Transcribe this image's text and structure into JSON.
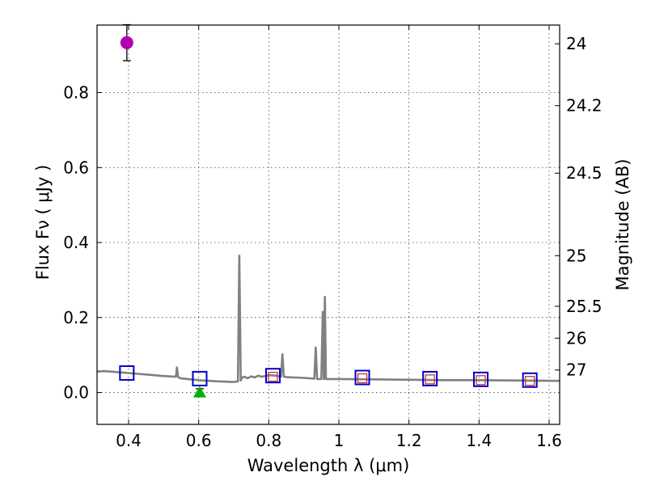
{
  "chart_data": {
    "type": "scatter",
    "title": "",
    "xlabel": "Wavelength  λ (μm)",
    "ylabel": "Flux  Fν  ( μJy )",
    "ylabel_right": "Magnitude (AB)",
    "xlim": [
      0.31,
      1.63
    ],
    "ylim": [
      -0.085,
      0.98
    ],
    "grid": true,
    "x_ticks": [
      0.4,
      0.6,
      0.8,
      1.0,
      1.2,
      1.4,
      1.6
    ],
    "x_tick_labels": [
      "0.4",
      "0.6",
      "0.8",
      "1",
      "1.2",
      "1.4",
      "1.6"
    ],
    "y_ticks": [
      0.0,
      0.2,
      0.4,
      0.6,
      0.8
    ],
    "y_tick_labels": [
      "0.0",
      "0.2",
      "0.4",
      "0.6",
      "0.8"
    ],
    "right_ticks": [
      {
        "flux": 0.93,
        "label": "24"
      },
      {
        "flux": 0.765,
        "label": "24.2"
      },
      {
        "flux": 0.585,
        "label": "24.5"
      },
      {
        "flux": 0.365,
        "label": "25"
      },
      {
        "flux": 0.23,
        "label": "25.5"
      },
      {
        "flux": 0.145,
        "label": "26"
      },
      {
        "flux": 0.06,
        "label": "27"
      }
    ],
    "series": [
      {
        "name": "model spectrum",
        "kind": "line",
        "color": "#808080",
        "x": [
          0.31,
          0.33,
          0.36,
          0.4,
          0.45,
          0.5,
          0.535,
          0.538,
          0.541,
          0.544,
          0.547,
          0.6,
          0.65,
          0.7,
          0.712,
          0.716,
          0.72,
          0.724,
          0.73,
          0.74,
          0.75,
          0.76,
          0.77,
          0.78,
          0.8,
          0.82,
          0.835,
          0.839,
          0.843,
          0.847,
          0.85,
          0.9,
          0.93,
          0.934,
          0.938,
          0.942,
          0.95,
          0.954,
          0.957,
          0.96,
          0.963,
          0.967,
          0.971,
          0.975,
          1.0,
          1.1,
          1.2,
          1.3,
          1.4,
          1.5,
          1.63
        ],
        "y": [
          0.056,
          0.057,
          0.055,
          0.052,
          0.048,
          0.044,
          0.042,
          0.067,
          0.042,
          0.04,
          0.038,
          0.033,
          0.03,
          0.028,
          0.03,
          0.365,
          0.032,
          0.04,
          0.042,
          0.038,
          0.043,
          0.04,
          0.045,
          0.042,
          0.046,
          0.045,
          0.042,
          0.102,
          0.042,
          0.042,
          0.041,
          0.039,
          0.037,
          0.12,
          0.036,
          0.036,
          0.036,
          0.215,
          0.036,
          0.255,
          0.036,
          0.036,
          0.036,
          0.036,
          0.036,
          0.035,
          0.034,
          0.033,
          0.033,
          0.032,
          0.031
        ]
      },
      {
        "name": "photometry detection",
        "kind": "marker",
        "marker": "circle",
        "color": "#b000b0",
        "x": [
          0.395
        ],
        "y": [
          0.933
        ],
        "yerr": [
          0.048
        ]
      },
      {
        "name": "upper limit",
        "kind": "marker",
        "marker": "triangle",
        "color": "#00b000",
        "x": [
          0.603
        ],
        "y": [
          0.0
        ],
        "yerr": [
          0.01
        ]
      },
      {
        "name": "model bandpass fluxes",
        "kind": "marker",
        "marker": "square-open",
        "color": "#0000cc",
        "x": [
          0.395,
          0.603,
          0.812,
          1.067,
          1.26,
          1.405,
          1.545
        ],
        "y": [
          0.052,
          0.037,
          0.045,
          0.04,
          0.037,
          0.035,
          0.033
        ]
      },
      {
        "name": "observed fluxes",
        "kind": "marker",
        "marker": "square-small",
        "color": "#cc3333",
        "x": [
          0.812,
          1.067,
          1.26,
          1.405,
          1.545
        ],
        "y": [
          0.042,
          0.038,
          0.035,
          0.033,
          0.031
        ]
      }
    ]
  }
}
